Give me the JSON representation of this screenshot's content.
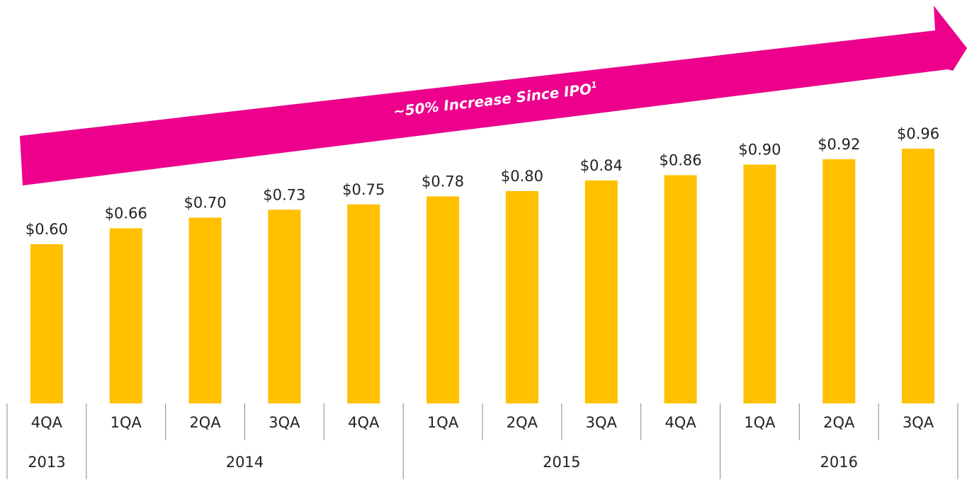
{
  "chart_data": {
    "type": "bar",
    "color": "#FFC000",
    "annotation": "~50% Increase Since IPO",
    "annotation_sup": "1",
    "annotation_color": "#EC008C",
    "groups": [
      {
        "label": "2013",
        "categories": [
          "4QA"
        ],
        "values": [
          0.6
        ],
        "value_labels": [
          "$0.60"
        ]
      },
      {
        "label": "2014",
        "categories": [
          "1QA",
          "2QA",
          "3QA",
          "4QA"
        ],
        "values": [
          0.66,
          0.7,
          0.73,
          0.75
        ],
        "value_labels": [
          "$0.66",
          "$0.70",
          "$0.73",
          "$0.75"
        ]
      },
      {
        "label": "2015",
        "categories": [
          "1QA",
          "2QA",
          "3QA",
          "4QA"
        ],
        "values": [
          0.78,
          0.8,
          0.84,
          0.86
        ],
        "value_labels": [
          "$0.78",
          "$0.80",
          "$0.84",
          "$0.86"
        ]
      },
      {
        "label": "2016",
        "categories": [
          "1QA",
          "2QA",
          "3QA"
        ],
        "values": [
          0.9,
          0.92,
          0.96
        ],
        "value_labels": [
          "$0.90",
          "$0.92",
          "$0.96"
        ]
      }
    ]
  }
}
